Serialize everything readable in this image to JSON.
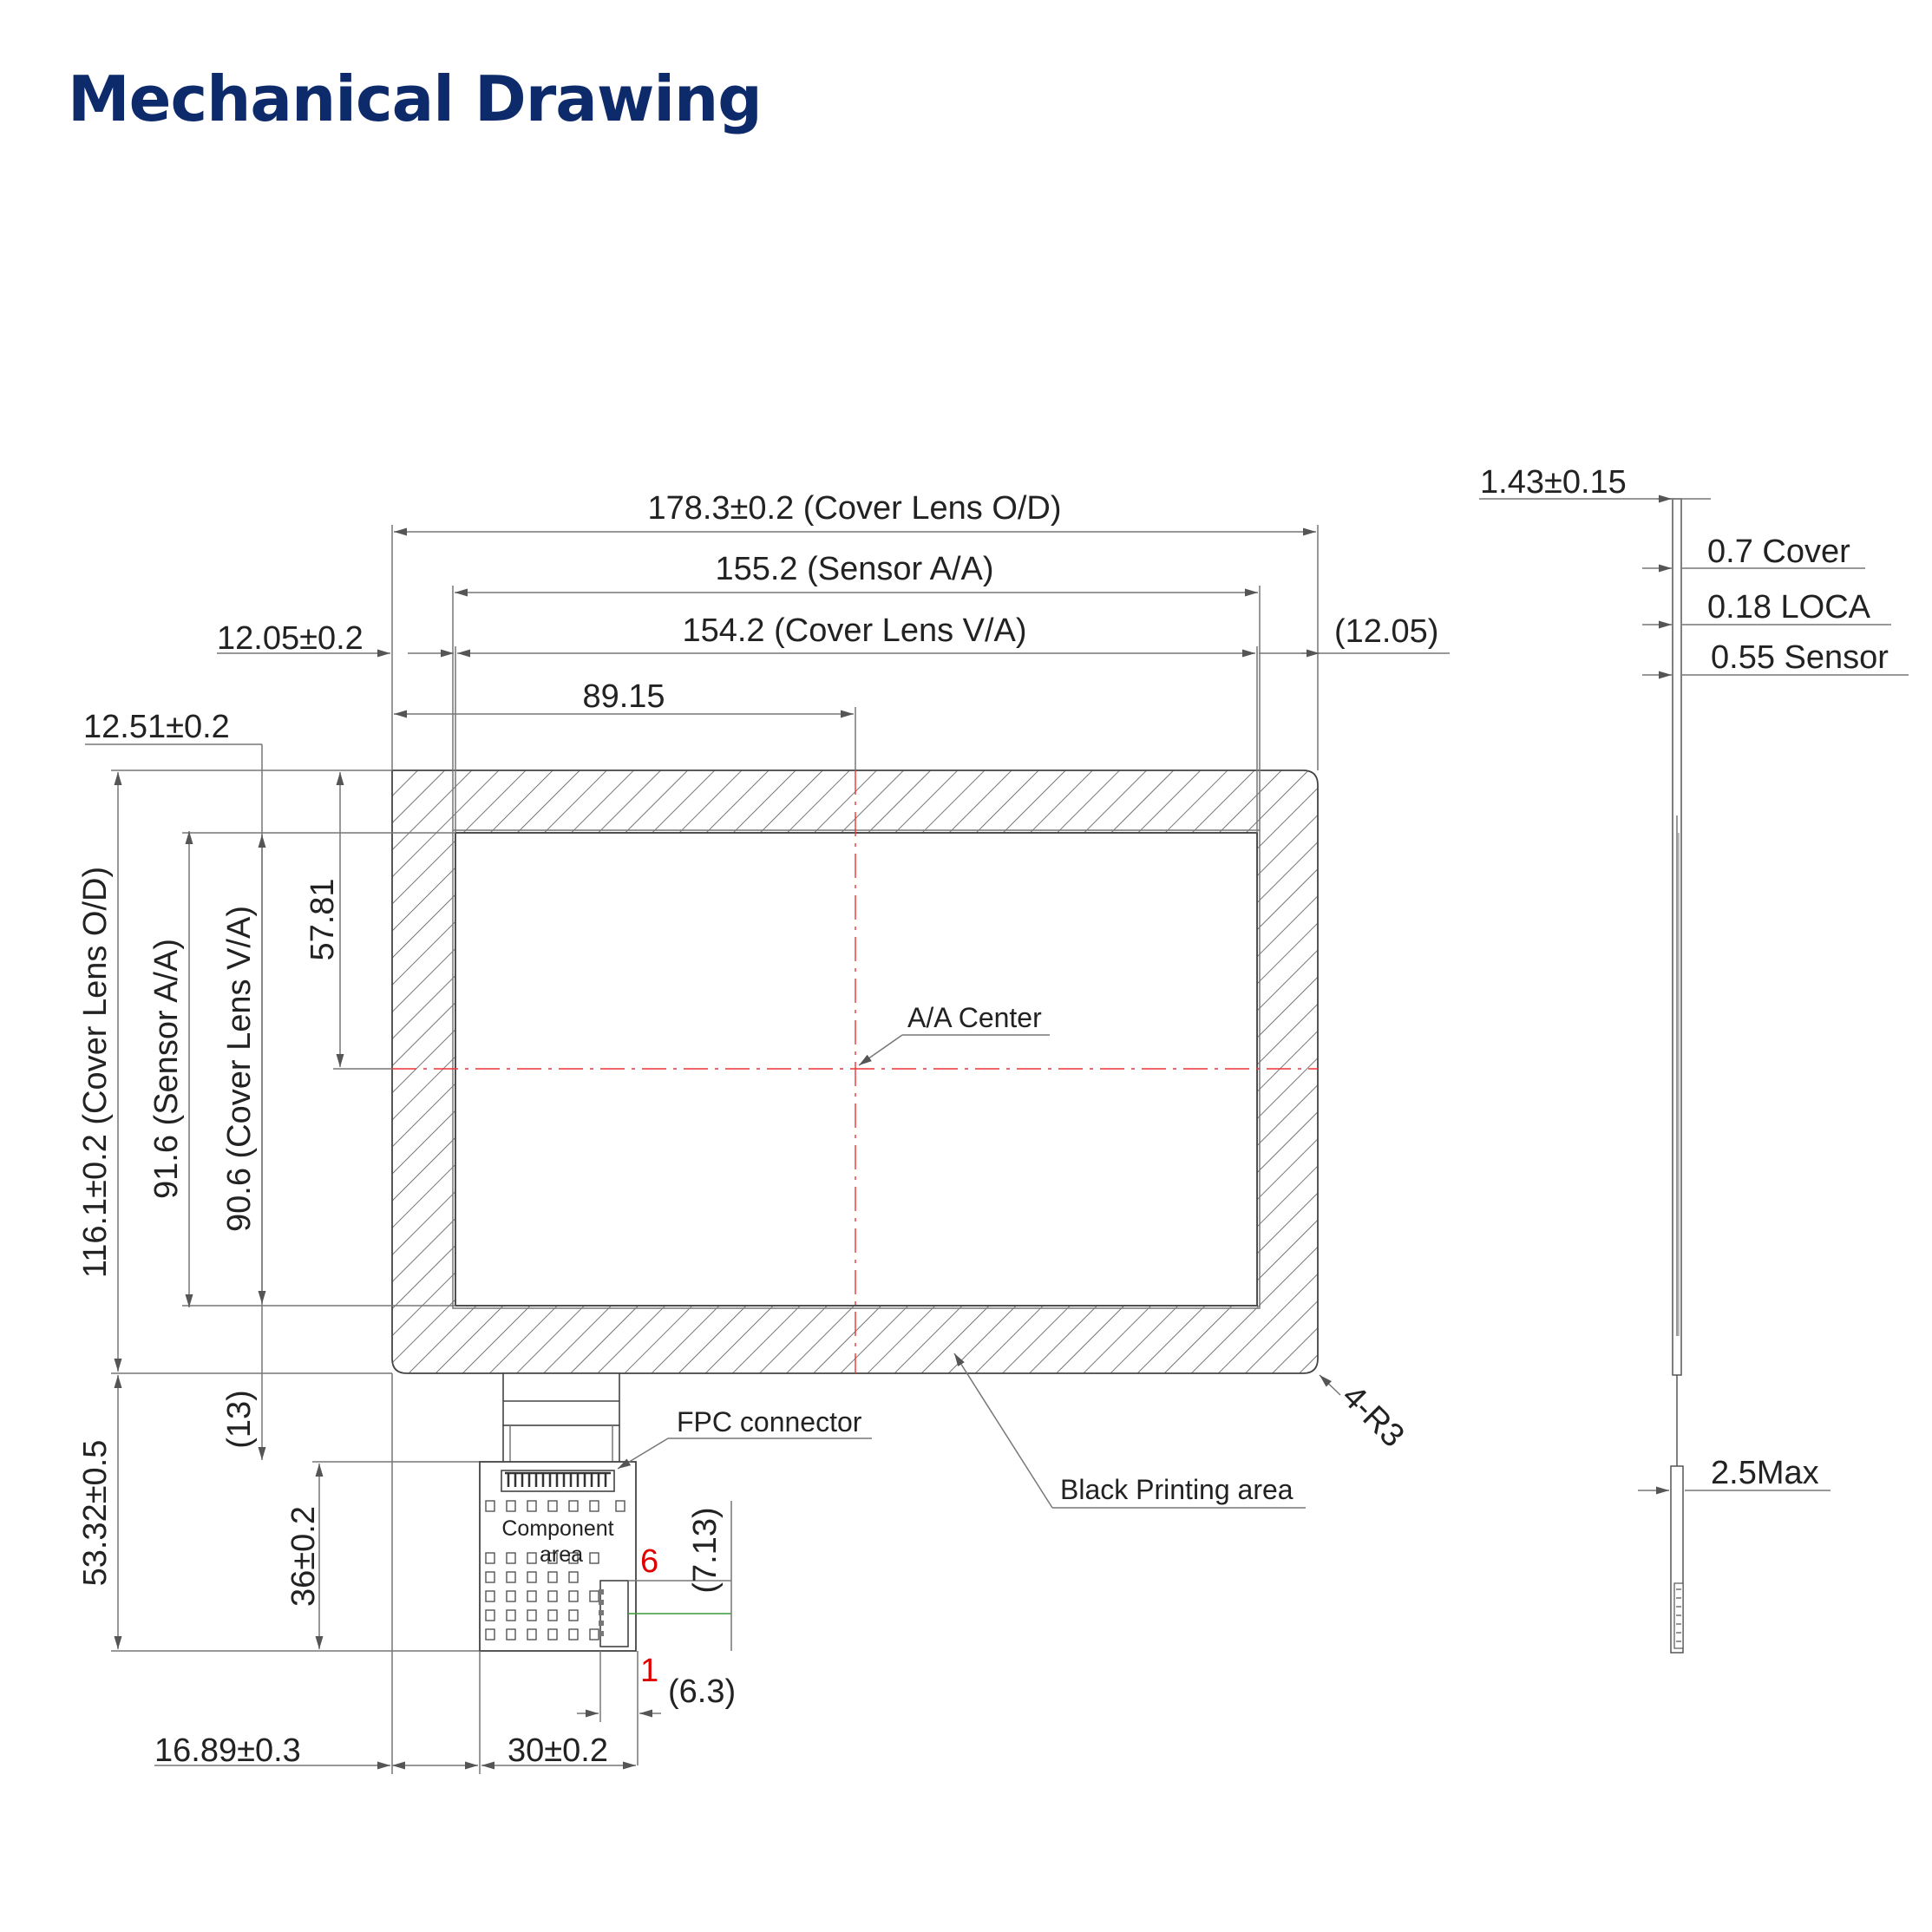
{
  "title": "Mechanical Drawing",
  "dims": {
    "cover_od_w": "178.3±0.2 (Cover Lens O/D)",
    "sensor_aa_w": "155.2 (Sensor A/A)",
    "cover_va_w": "154.2 (Cover Lens V/A)",
    "left_margin": "12.05±0.2",
    "right_margin": "(12.05)",
    "center_x": "89.15",
    "top_margin": "12.51±0.2",
    "cover_od_h": "116.1±0.2 (Cover Lens O/D)",
    "sensor_aa_h": "91.6 (Sensor A/A)",
    "cover_va_h": "90.6 (Cover Lens V/A)",
    "center_y": "57.81",
    "fpc_gap": "(13)",
    "fpc_total": "53.32±0.5",
    "fpc_board_h": "36±0.2",
    "pin_pitch": "(7.13)",
    "pin_offset": "(6.3)",
    "fpc_offset": "16.89±0.3",
    "fpc_width": "30±0.2"
  },
  "labels": {
    "aa_center": "A/A Center",
    "fpc_connector": "FPC connector",
    "component_area_1": "Component",
    "component_area_2": "area",
    "black_printing": "Black Printing area",
    "corner_radius": "4-R3",
    "pin6": "6",
    "pin1": "1"
  },
  "side_view": {
    "total": "1.43±0.15",
    "cover": "0.7 Cover",
    "loca": "0.18 LOCA",
    "sensor": "0.55 Sensor",
    "connector": "2.5Max"
  }
}
